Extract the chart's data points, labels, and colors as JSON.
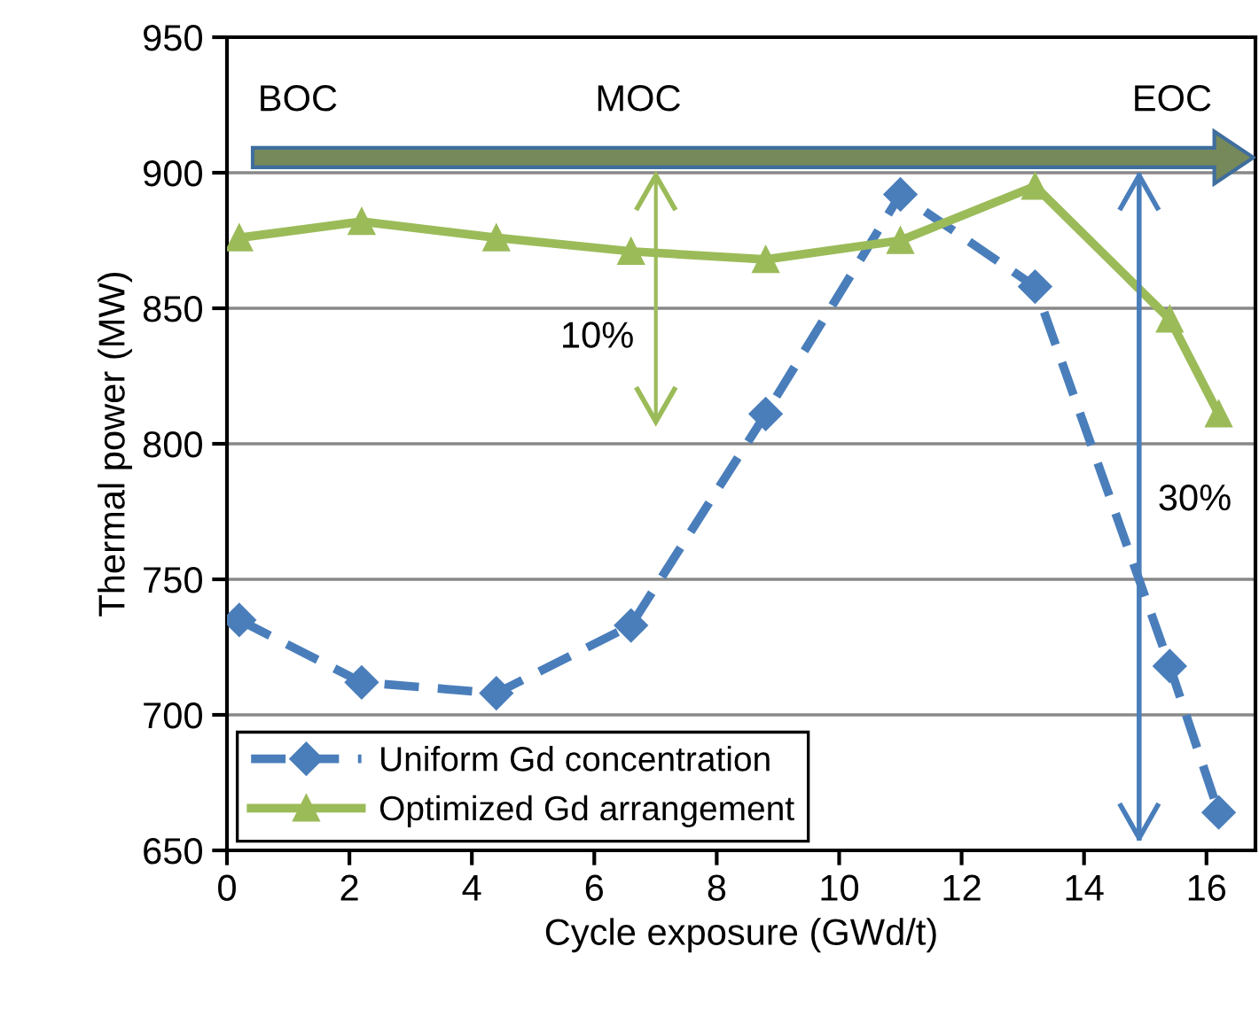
{
  "chart_data": {
    "type": "line",
    "xlabel": "Cycle exposure (GWd/t)",
    "ylabel": "Thermal power (MW)",
    "x": [
      0.2,
      2.2,
      4.4,
      6.6,
      8.8,
      11.0,
      13.2,
      15.4,
      16.2
    ],
    "series": [
      {
        "name": "Uniform Gd concentration",
        "color": "#4a7ebb",
        "marker": "diamond",
        "line_style": "dashed",
        "values": [
          735,
          712,
          708,
          733,
          811,
          892,
          858,
          718,
          664
        ]
      },
      {
        "name": "Optimized Gd arrangement",
        "color": "#9bbb59",
        "marker": "triangle",
        "line_style": "solid",
        "values": [
          876,
          882,
          876,
          871,
          868,
          875,
          895,
          846,
          811
        ]
      }
    ],
    "xlim": [
      0,
      16.8
    ],
    "xticks": [
      0,
      2,
      4,
      6,
      8,
      10,
      12,
      14,
      16
    ],
    "ylim": [
      650,
      950
    ],
    "yticks": [
      650,
      700,
      750,
      800,
      850,
      900,
      950
    ],
    "grid": "y",
    "legend": "bottom left",
    "ref_lines": [
      {
        "axis": "x",
        "value": 14.9,
        "color": "#4a7ebb"
      }
    ],
    "annotations": [
      "BOC",
      "MOC",
      "EOC",
      "10%",
      "30%"
    ]
  }
}
